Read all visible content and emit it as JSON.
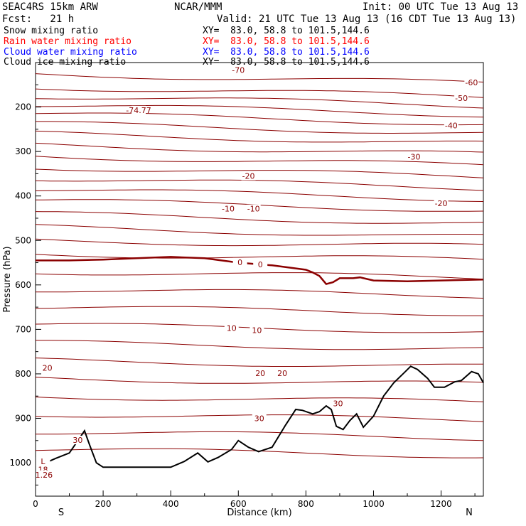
{
  "header": {
    "model": "SEAC4RS 15km ARW",
    "org": "NCAR/MMM",
    "init": "Init: 00 UTC Tue 13 Aug 13",
    "fcst": "Fcst:   21 h",
    "valid": "Valid: 21 UTC Tue 13 Aug 13 (16 CDT Tue 13 Aug 13)"
  },
  "fields": [
    {
      "name": "Snow mixing ratio",
      "xy": "XY=  83.0, 58.8 to 101.5,144.6",
      "color": "#000000"
    },
    {
      "name": "Rain water mixing ratio",
      "xy": "XY=  83.0, 58.8 to 101.5,144.6",
      "color": "#ff0000"
    },
    {
      "name": "Cloud water mixing ratio",
      "xy": "XY=  83.0, 58.8 to 101.5,144.6",
      "color": "#0000ff"
    },
    {
      "name": "Cloud ice mixing ratio",
      "xy": "XY=  83.0, 58.8 to 101.5,144.6",
      "color": "#000000"
    }
  ],
  "colors": {
    "contour": "#8b0000",
    "terrain": "#000000"
  },
  "chart_data": {
    "type": "line",
    "xlabel": "Distance (km)",
    "ylabel": "Pressure (hPa)",
    "xlim": [
      0,
      1325
    ],
    "ylim": [
      1075,
      100
    ],
    "x_ticks": [
      0,
      200,
      400,
      600,
      800,
      1000,
      1200
    ],
    "y_ticks": [
      200,
      300,
      400,
      500,
      600,
      700,
      800,
      900,
      1000
    ],
    "endpoints": {
      "left": "S",
      "right": "N"
    },
    "grid": false,
    "contour_labels": [
      {
        "text": "-74.77",
        "x": 305,
        "p": 210
      },
      {
        "text": "-70",
        "x": 600,
        "p": 120
      },
      {
        "text": "-60",
        "x": 1290,
        "p": 148
      },
      {
        "text": "-50",
        "x": 1260,
        "p": 183
      },
      {
        "text": "-40",
        "x": 1230,
        "p": 245
      },
      {
        "text": "-30",
        "x": 1120,
        "p": 315
      },
      {
        "text": "-20",
        "x": 630,
        "p": 358
      },
      {
        "text": "-20",
        "x": 1200,
        "p": 420
      },
      {
        "text": "-10",
        "x": 570,
        "p": 432
      },
      {
        "text": "-10",
        "x": 645,
        "p": 432
      },
      {
        "text": "0",
        "x": 605,
        "p": 552
      },
      {
        "text": "0",
        "x": 665,
        "p": 557
      },
      {
        "text": "10",
        "x": 580,
        "p": 700
      },
      {
        "text": "10",
        "x": 655,
        "p": 705
      },
      {
        "text": "20",
        "x": 35,
        "p": 790
      },
      {
        "text": "20",
        "x": 665,
        "p": 802
      },
      {
        "text": "20",
        "x": 730,
        "p": 802
      },
      {
        "text": "30",
        "x": 662,
        "p": 903
      },
      {
        "text": "30",
        "x": 895,
        "p": 870
      },
      {
        "text": "30",
        "x": 125,
        "p": 952
      },
      {
        "text": "L",
        "x": 22,
        "p": 1000
      },
      {
        "text": "18",
        "x": 22,
        "p": 1018
      },
      {
        "text": "1.26",
        "x": 25,
        "p": 1030
      }
    ],
    "series": [
      {
        "name": "0",
        "x": [
          0,
          100,
          200,
          300,
          400,
          500,
          600,
          700,
          800,
          820,
          840,
          860,
          880,
          900,
          940,
          960,
          1000,
          1100,
          1200,
          1325
        ],
        "values": [
          545,
          545,
          543,
          540,
          537,
          540,
          550,
          556,
          566,
          572,
          580,
          598,
          594,
          585,
          585,
          583,
          590,
          592,
          590,
          588
        ]
      },
      {
        "name": "terrain",
        "x": [
          0,
          60,
          100,
          130,
          145,
          160,
          180,
          200,
          300,
          400,
          440,
          480,
          510,
          540,
          580,
          600,
          630,
          660,
          700,
          740,
          770,
          790,
          820,
          840,
          860,
          875,
          890,
          910,
          930,
          950,
          970,
          1000,
          1030,
          1060,
          1090,
          1110,
          1130,
          1160,
          1180,
          1210,
          1240,
          1260,
          1290,
          1310,
          1325
        ],
        "values": [
          1010,
          990,
          978,
          945,
          928,
          960,
          1000,
          1010,
          1010,
          1010,
          997,
          978,
          998,
          988,
          970,
          950,
          965,
          975,
          965,
          915,
          880,
          882,
          890,
          885,
          872,
          880,
          918,
          925,
          905,
          890,
          920,
          895,
          850,
          820,
          798,
          783,
          790,
          810,
          830,
          830,
          818,
          815,
          795,
          800,
          820
        ]
      }
    ]
  }
}
